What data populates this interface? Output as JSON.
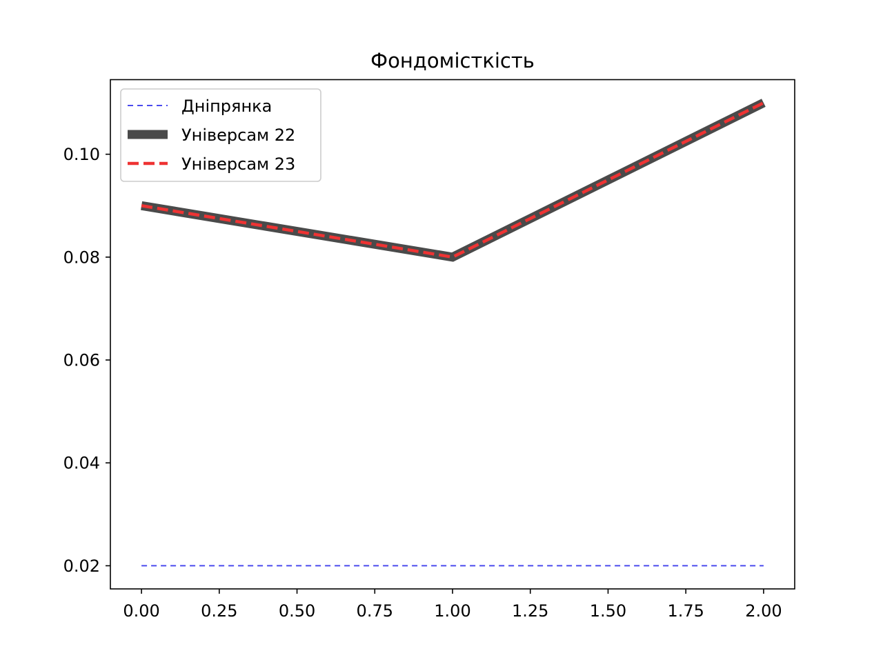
{
  "chart_data": {
    "type": "line",
    "title": "Фондомісткість",
    "xlabel": "",
    "ylabel": "",
    "x": [
      0,
      1,
      2
    ],
    "xlim": [
      -0.1,
      2.1
    ],
    "ylim": [
      0.0155,
      0.1145
    ],
    "x_ticks": [
      0.0,
      0.25,
      0.5,
      0.75,
      1.0,
      1.25,
      1.5,
      1.75,
      2.0
    ],
    "x_tick_labels": [
      "0.00",
      "0.25",
      "0.50",
      "0.75",
      "1.00",
      "1.25",
      "1.50",
      "1.75",
      "2.00"
    ],
    "y_ticks": [
      0.02,
      0.04,
      0.06,
      0.08,
      0.1
    ],
    "y_tick_labels": [
      "0.02",
      "0.04",
      "0.06",
      "0.08",
      "0.10"
    ],
    "grid": false,
    "legend_position": "upper-left",
    "series": [
      {
        "name": "Дніпрянка",
        "values": [
          0.02,
          0.02,
          0.02
        ],
        "color": "#4a4aee",
        "style": "dashed-thin"
      },
      {
        "name": "Універсам 22",
        "values": [
          0.09,
          0.08,
          0.11
        ],
        "color": "#4a4a4a",
        "style": "solid-thick"
      },
      {
        "name": "Універсам 23",
        "values": [
          0.09,
          0.08,
          0.11
        ],
        "color": "#ee3333",
        "style": "dashed-medium"
      }
    ]
  }
}
